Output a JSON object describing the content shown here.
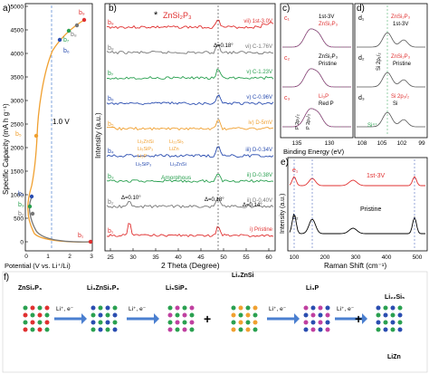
{
  "panel_a": {
    "letter": "a)",
    "ylabel": "Specific Capacity (mA h g⁻¹)",
    "xlabel": "Potential (V vs. Li⁺/Li)",
    "yticks": [
      "0",
      "500",
      "1000",
      "1500",
      "2000",
      "2500",
      "3000",
      "3500",
      "4000",
      "4500",
      "5000"
    ],
    "xticks": [
      "0",
      "1",
      "2",
      "3"
    ],
    "annotation": "1.0 V",
    "points": [
      "b₁",
      "b₂",
      "b₃",
      "b₄",
      "b₅",
      "b₆",
      "b₇",
      "b₈",
      "b₉"
    ],
    "colors": {
      "discharge": "#777777",
      "charge": "#f0a030",
      "red": "#e03030",
      "blue": "#2a4db0",
      "green": "#2aa050"
    }
  },
  "panel_b": {
    "letter": "b)",
    "title": "ZnSi₂P₃",
    "ylabel": "Intensity (a.u.)",
    "xlabel": "2 Theta (Degree)",
    "xticks": [
      "25",
      "30",
      "35",
      "40",
      "45",
      "50",
      "55",
      "60"
    ],
    "traces": [
      {
        "left": "b₉",
        "right": "vii) 1st-3.0V",
        "color": "#e03030"
      },
      {
        "left": "b₈",
        "right": "vi) C-1.76V",
        "color": "#777777"
      },
      {
        "left": "b₇",
        "right": "v) C-1.23V",
        "color": "#2aa050"
      },
      {
        "left": "b₆",
        "right": "v) C-0.96V",
        "color": "#2a4db0"
      },
      {
        "left": "b₅",
        "right": "iv) D-5mV",
        "color": "#f0a030"
      },
      {
        "left": "b₄",
        "right": "iii) D-0.34V",
        "color": "#2a4db0"
      },
      {
        "left": "b₃",
        "right": "ii) D-0.38V",
        "color": "#2aa050"
      },
      {
        "left": "b₂",
        "right": "ii) D-0.40V",
        "color": "#777777"
      },
      {
        "left": "b₁",
        "right": "i) Pristine",
        "color": "#e03030"
      }
    ],
    "legend5": [
      "Li₂ZnSi",
      "Li₅SiP₃",
      "Li₃P",
      "Li₂₂Si₅",
      "LiZn"
    ],
    "legend4": [
      "Li₅SiP₃",
      "Li₃ZnSi"
    ],
    "amorphous": "Amorphous",
    "delta1": "Δ=0.18°",
    "delta2": "Δ=0.10°",
    "delta3": "Δ=0.18°",
    "delta4": "Δ=0.14°"
  },
  "panel_c": {
    "letter": "c)",
    "xlabel": "Binding Energy (eV)",
    "xticks": [
      "135",
      "130"
    ],
    "subs": [
      {
        "id": "c₁",
        "label": "1st-3V",
        "sub": "ZnSi₂P₃"
      },
      {
        "id": "c₂",
        "label": "ZnSi₂P₃",
        "sub": "Pristine"
      },
      {
        "id": "c₃",
        "label": "Li₃P",
        "sub": "Red P"
      }
    ],
    "peaks": [
      "P 2p₁/₂",
      "P 2p₃/₂"
    ]
  },
  "panel_d": {
    "letter": "d)",
    "xticks": [
      "108",
      "105",
      "102",
      "99"
    ],
    "subs": [
      {
        "id": "d₁",
        "label": "ZnSi₂P₃",
        "sub": "1st-3V"
      },
      {
        "id": "d₂",
        "label": "ZnSi₂P₃",
        "sub": "Pristine"
      },
      {
        "id": "d₃",
        "label": "Si 2p₃/₂",
        "sub": "Si"
      }
    ],
    "side": "Si 2p₁/₂",
    "si4": "Si⁴⁺"
  },
  "panel_e": {
    "letter": "e)",
    "ylabel": "Intensity (a.u.)",
    "xlabel": "Raman Shift (cm⁻¹)",
    "xticks": [
      "100",
      "200",
      "300",
      "400",
      "500"
    ],
    "e1": "e₁",
    "e2": "e₂",
    "label1": "1st-3V",
    "label2": "Pristine"
  },
  "panel_f": {
    "letter": "f)",
    "step": "Li⁺, e⁻",
    "compounds": [
      "ZnSi₂P₃",
      "Li₃ZnSi₂P₃",
      "Li₅SiP₃",
      "Li₂ZnSi",
      "Li₃P",
      "Li₂₂Si₅",
      "LiZn"
    ]
  }
}
